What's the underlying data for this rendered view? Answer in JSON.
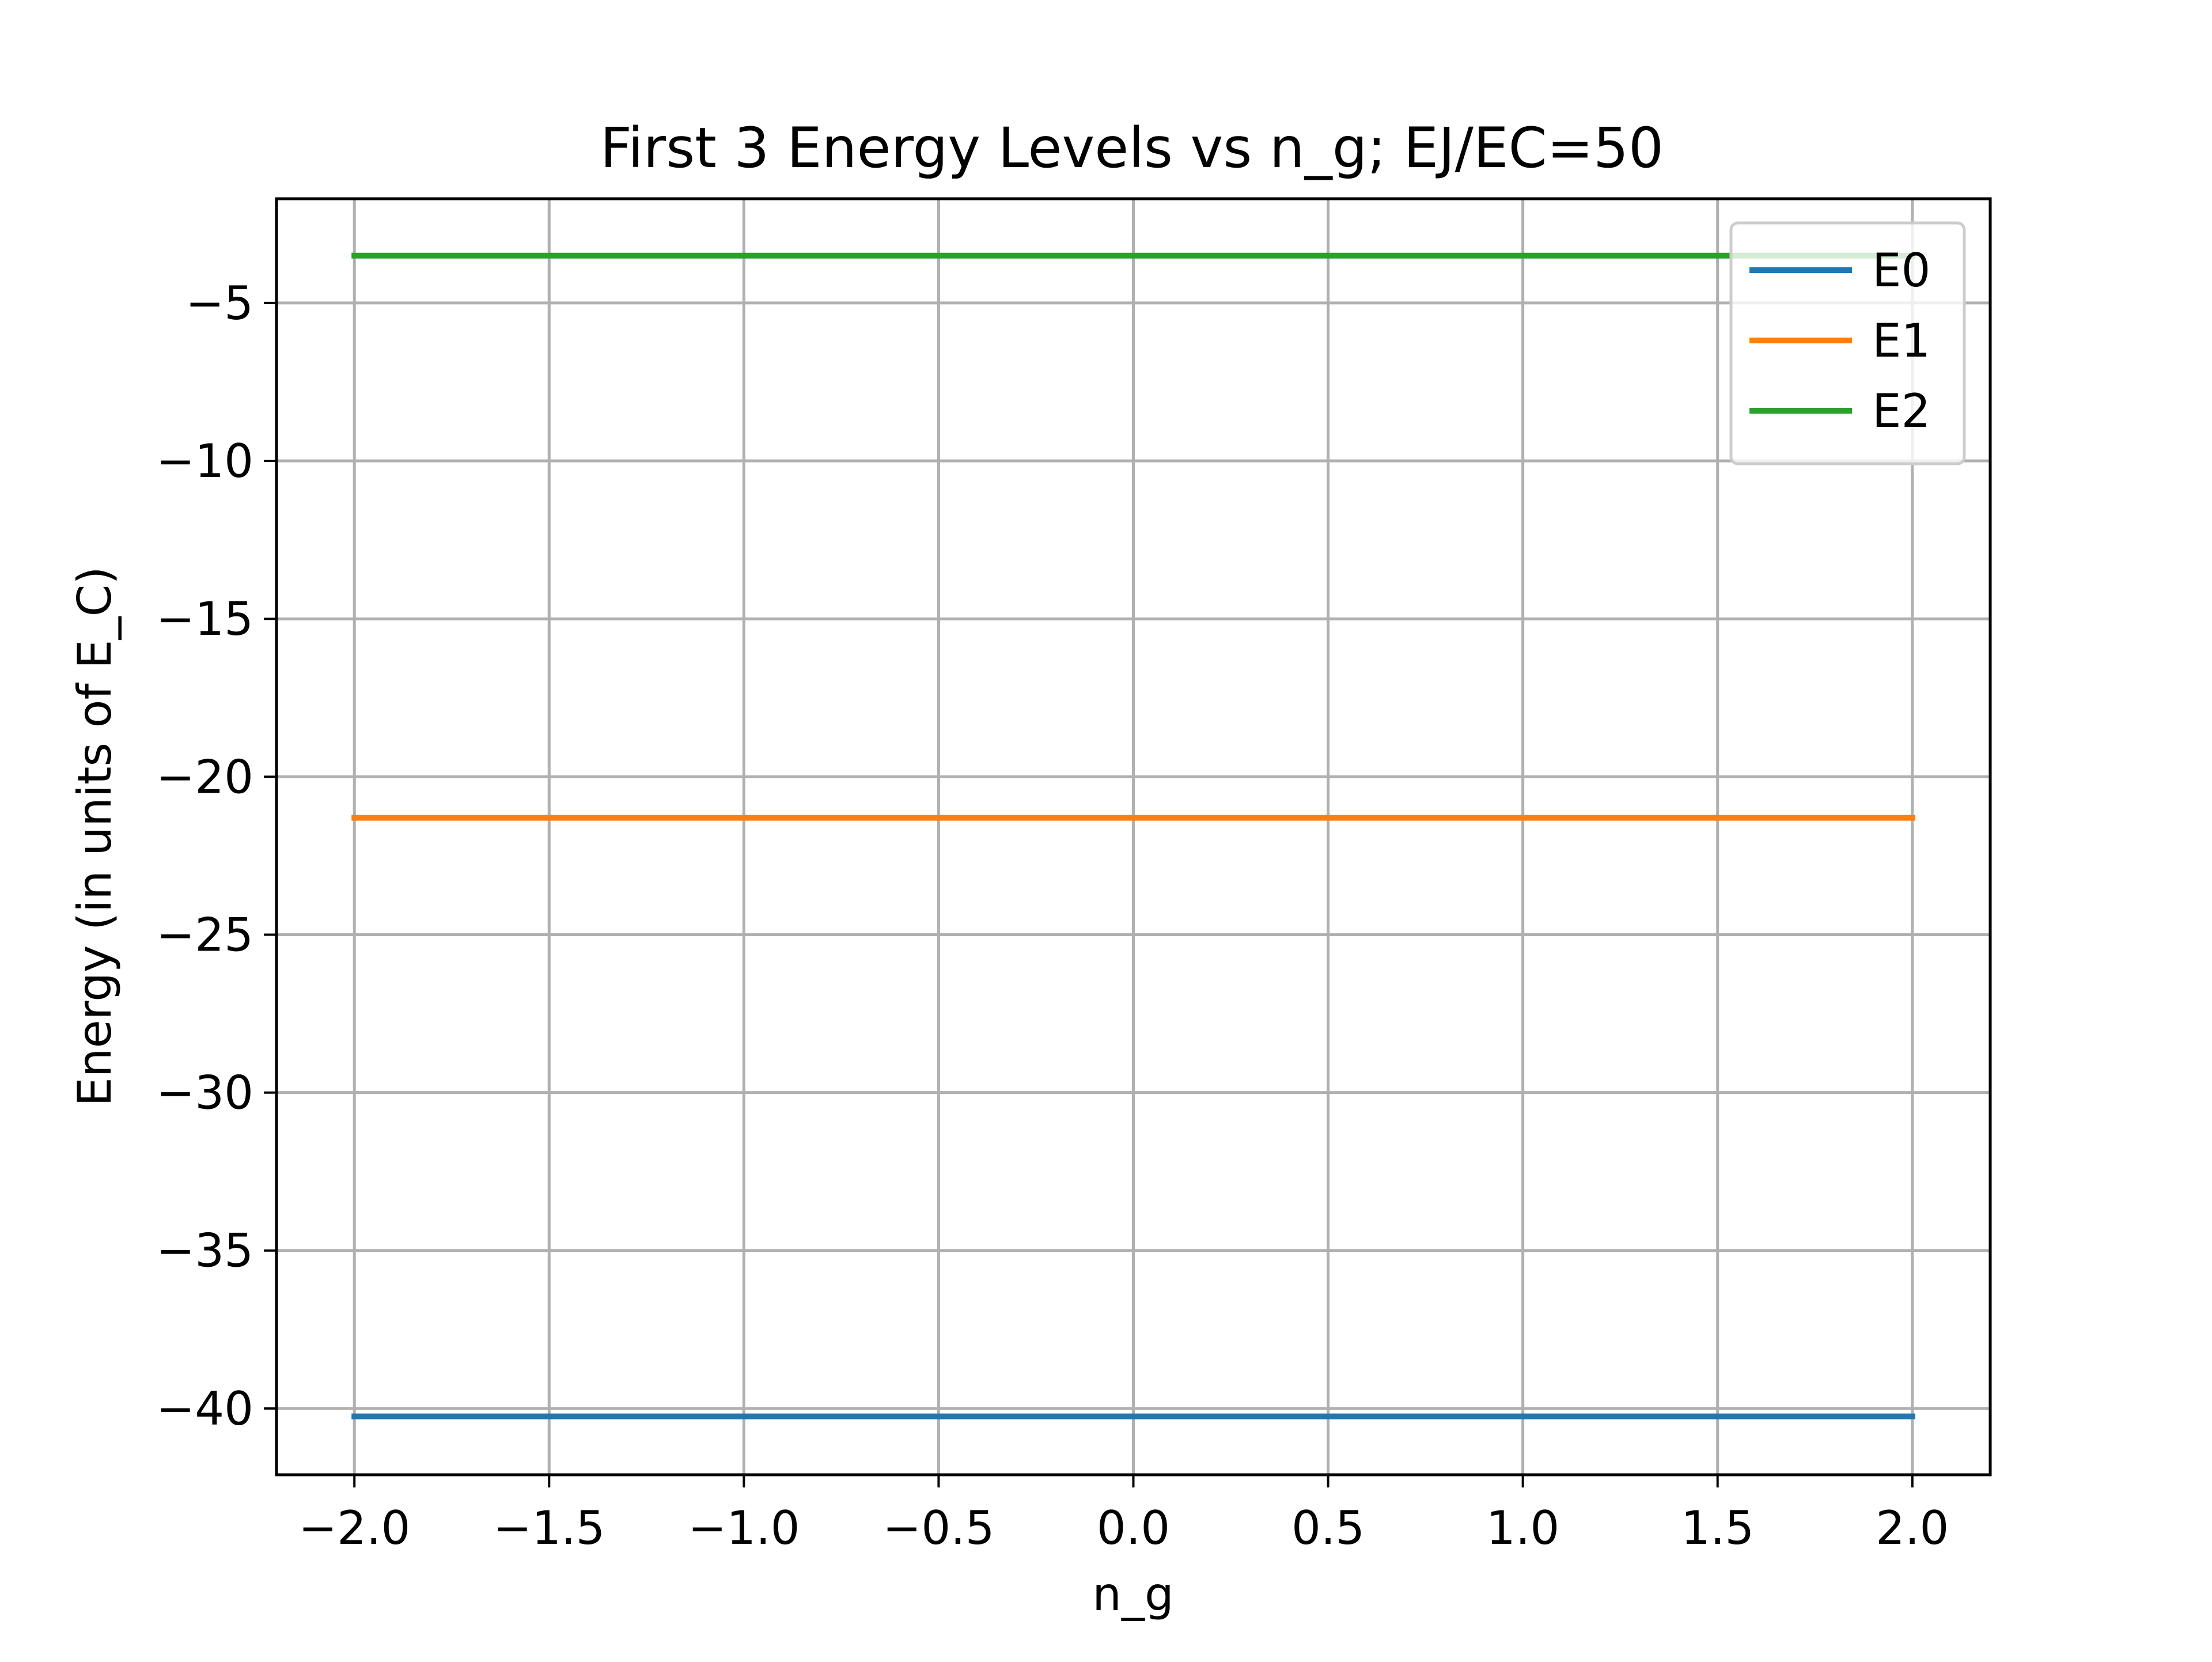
{
  "chart_data": {
    "type": "line",
    "title": "First 3 Energy Levels vs n_g; EJ/EC=50",
    "xlabel": "n_g",
    "ylabel": "Energy (in units of E_C)",
    "xlim": [
      -2.2,
      2.2
    ],
    "ylim": [
      -42.1,
      -1.7
    ],
    "xticks": [
      -2.0,
      -1.5,
      -1.0,
      -0.5,
      0.0,
      0.5,
      1.0,
      1.5,
      2.0
    ],
    "xtick_labels": [
      "−2.0",
      "−1.5",
      "−1.0",
      "−0.5",
      "0.0",
      "0.5",
      "1.0",
      "1.5",
      "2.0"
    ],
    "yticks": [
      -5,
      -10,
      -15,
      -20,
      -25,
      -30,
      -35,
      -40
    ],
    "ytick_labels": [
      "−5",
      "−10",
      "−15",
      "−20",
      "−25",
      "−30",
      "−35",
      "−40"
    ],
    "grid": true,
    "legend_position": "top-right",
    "x": [
      -2.0,
      -1.5,
      -1.0,
      -0.5,
      0.0,
      0.5,
      1.0,
      1.5,
      2.0
    ],
    "series": [
      {
        "name": "E0",
        "color": "#1f77b4",
        "values": [
          -40.25,
          -40.25,
          -40.25,
          -40.25,
          -40.25,
          -40.25,
          -40.25,
          -40.25,
          -40.25
        ]
      },
      {
        "name": "E1",
        "color": "#ff7f0e",
        "values": [
          -21.3,
          -21.3,
          -21.3,
          -21.3,
          -21.3,
          -21.3,
          -21.3,
          -21.3,
          -21.3
        ]
      },
      {
        "name": "E2",
        "color": "#2ca02c",
        "values": [
          -3.5,
          -3.5,
          -3.5,
          -3.5,
          -3.5,
          -3.5,
          -3.5,
          -3.5,
          -3.5
        ]
      }
    ]
  }
}
